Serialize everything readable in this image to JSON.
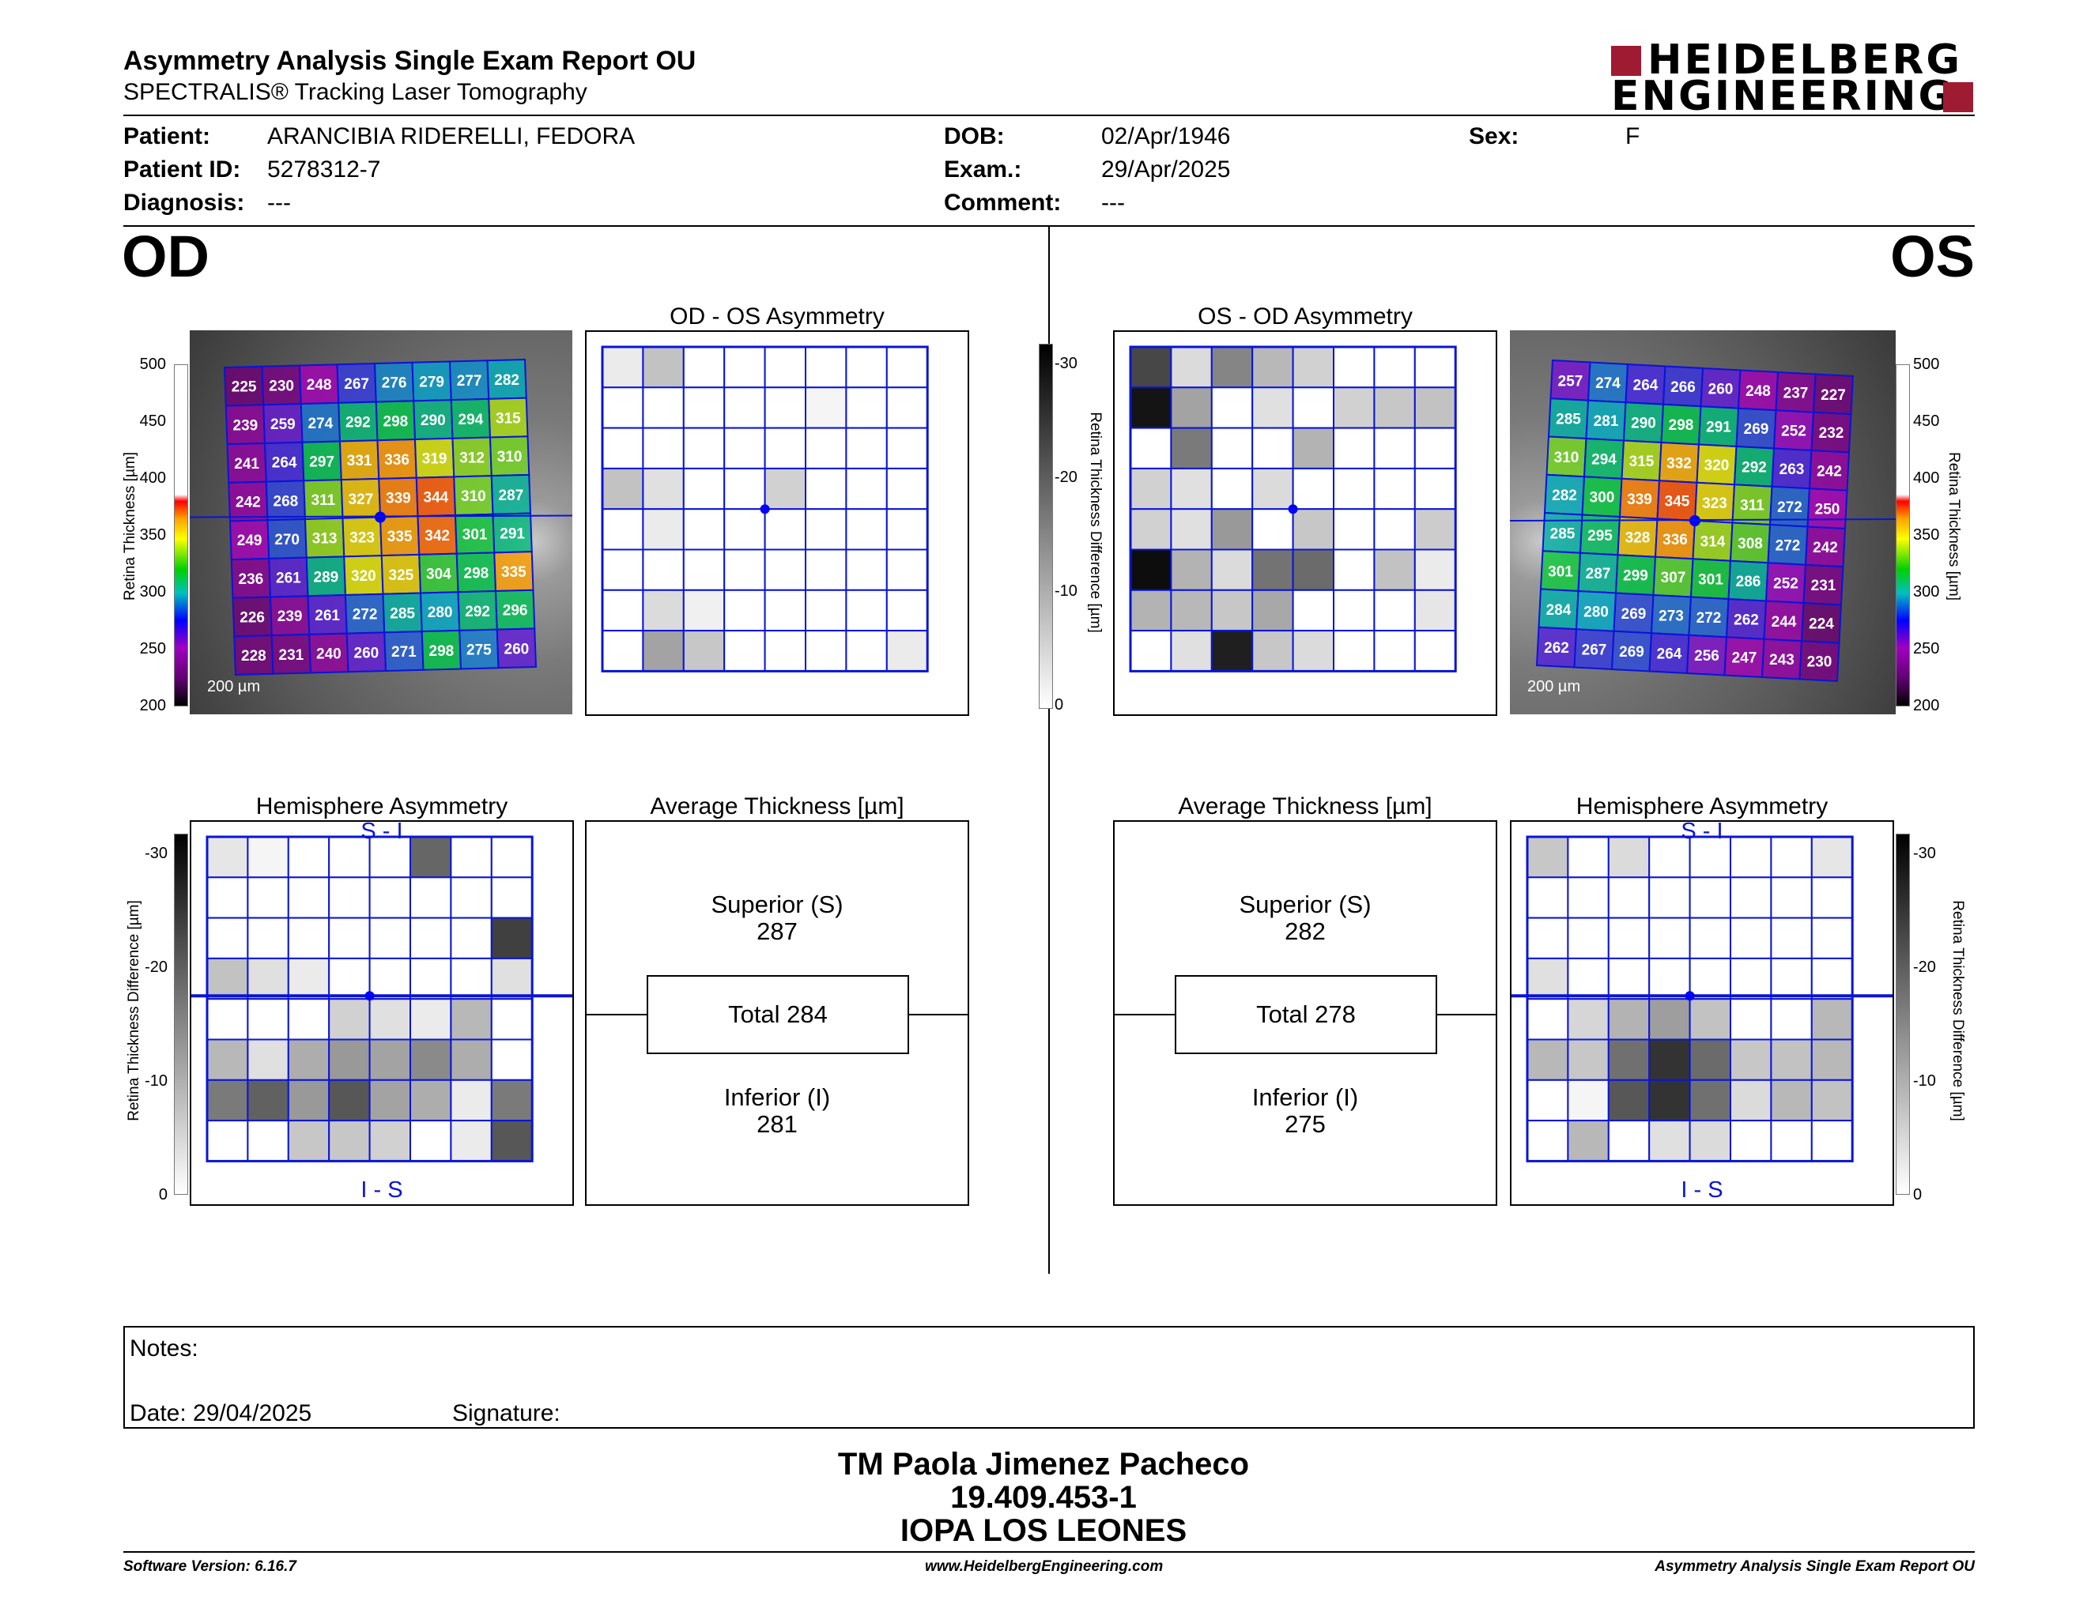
{
  "header": {
    "title": "Asymmetry Analysis Single Exam Report OU",
    "subtitle": "SPECTRALIS® Tracking Laser Tomography",
    "logo_line1": "HEIDELBERG",
    "logo_line2": "ENGINEERING",
    "logo_color": "#9e1b32"
  },
  "patient": {
    "patient_label": "Patient:",
    "patient": "ARANCIBIA RIDERELLI, FEDORA",
    "id_label": "Patient ID:",
    "id": "5278312-7",
    "diag_label": "Diagnosis:",
    "diagnosis": "---",
    "dob_label": "DOB:",
    "dob": "02/Apr/1946",
    "exam_label": "Exam.:",
    "exam": "29/Apr/2025",
    "comment_label": "Comment:",
    "comment": "---",
    "sex_label": "Sex:",
    "sex": "F"
  },
  "od": {
    "eye": "OD",
    "asym_title": "OD - OS Asymmetry",
    "hemi_title": "Hemisphere Asymmetry",
    "avg_title": "Average Thickness [µm]",
    "scale_bar": "200 µm",
    "hemi_top": "S - I",
    "hemi_bottom": "I - S",
    "superior_label": "Superior (S)",
    "superior": "287",
    "total_label": "Total 284",
    "inferior_label": "Inferior (I)",
    "inferior": "281",
    "grid": [
      [
        225,
        230,
        248,
        267,
        276,
        279,
        277,
        282
      ],
      [
        239,
        259,
        274,
        292,
        298,
        290,
        294,
        315
      ],
      [
        241,
        264,
        297,
        331,
        336,
        319,
        312,
        310
      ],
      [
        242,
        268,
        311,
        327,
        339,
        344,
        310,
        287
      ],
      [
        249,
        270,
        313,
        323,
        335,
        342,
        301,
        291
      ],
      [
        236,
        261,
        289,
        320,
        325,
        304,
        298,
        335
      ],
      [
        226,
        239,
        261,
        272,
        285,
        280,
        292,
        296
      ],
      [
        228,
        231,
        240,
        260,
        271,
        298,
        275,
        260
      ]
    ],
    "asym_shades": [
      [
        8,
        24,
        0,
        0,
        0,
        0,
        0,
        0
      ],
      [
        0,
        0,
        0,
        0,
        0,
        4,
        0,
        0
      ],
      [
        0,
        0,
        0,
        0,
        0,
        0,
        0,
        0
      ],
      [
        24,
        12,
        0,
        0,
        18,
        0,
        0,
        0
      ],
      [
        0,
        8,
        0,
        0,
        0,
        0,
        0,
        0
      ],
      [
        0,
        0,
        0,
        0,
        0,
        0,
        0,
        0
      ],
      [
        0,
        14,
        6,
        0,
        0,
        0,
        0,
        0
      ],
      [
        0,
        36,
        22,
        0,
        0,
        0,
        0,
        8
      ]
    ],
    "hemi_shades": [
      [
        10,
        4,
        0,
        0,
        0,
        60,
        0,
        0
      ],
      [
        0,
        0,
        0,
        0,
        0,
        0,
        0,
        0
      ],
      [
        0,
        0,
        0,
        0,
        0,
        0,
        0,
        75
      ],
      [
        24,
        12,
        8,
        0,
        0,
        0,
        0,
        12
      ],
      [
        0,
        0,
        0,
        18,
        12,
        8,
        28,
        0
      ],
      [
        28,
        12,
        32,
        40,
        36,
        46,
        32,
        0
      ],
      [
        52,
        62,
        40,
        66,
        36,
        32,
        8,
        52
      ],
      [
        0,
        0,
        22,
        22,
        18,
        0,
        8,
        66
      ]
    ]
  },
  "os": {
    "eye": "OS",
    "asym_title": "OS - OD Asymmetry",
    "hemi_title": "Hemisphere Asymmetry",
    "avg_title": "Average Thickness [µm]",
    "scale_bar": "200 µm",
    "hemi_top": "S - I",
    "hemi_bottom": "I - S",
    "superior_label": "Superior (S)",
    "superior": "282",
    "total_label": "Total 278",
    "inferior_label": "Inferior (I)",
    "inferior": "275",
    "grid": [
      [
        257,
        274,
        264,
        266,
        260,
        248,
        237,
        227
      ],
      [
        285,
        281,
        290,
        298,
        291,
        269,
        252,
        232
      ],
      [
        310,
        294,
        315,
        332,
        320,
        292,
        263,
        242
      ],
      [
        282,
        300,
        339,
        345,
        323,
        311,
        272,
        250
      ],
      [
        285,
        295,
        328,
        336,
        314,
        308,
        272,
        242
      ],
      [
        301,
        287,
        299,
        307,
        301,
        286,
        252,
        231
      ],
      [
        284,
        280,
        269,
        273,
        272,
        262,
        244,
        224
      ],
      [
        262,
        267,
        269,
        264,
        256,
        247,
        243,
        230
      ]
    ],
    "asym_shades": [
      [
        72,
        14,
        48,
        28,
        18,
        0,
        0,
        0
      ],
      [
        92,
        36,
        0,
        12,
        0,
        18,
        22,
        24
      ],
      [
        0,
        52,
        0,
        0,
        30,
        0,
        0,
        0
      ],
      [
        18,
        12,
        0,
        14,
        0,
        0,
        0,
        0
      ],
      [
        18,
        12,
        40,
        0,
        22,
        0,
        0,
        20
      ],
      [
        95,
        30,
        14,
        55,
        58,
        0,
        24,
        8
      ],
      [
        30,
        28,
        22,
        34,
        0,
        0,
        0,
        10
      ],
      [
        0,
        12,
        88,
        22,
        14,
        0,
        0,
        0
      ]
    ],
    "hemi_shades": [
      [
        22,
        0,
        14,
        0,
        0,
        0,
        0,
        10
      ],
      [
        0,
        0,
        0,
        0,
        0,
        0,
        0,
        0
      ],
      [
        0,
        0,
        0,
        0,
        0,
        0,
        0,
        0
      ],
      [
        12,
        0,
        0,
        0,
        0,
        0,
        0,
        0
      ],
      [
        0,
        16,
        30,
        38,
        24,
        0,
        0,
        28
      ],
      [
        28,
        22,
        56,
        80,
        58,
        22,
        24,
        28
      ],
      [
        0,
        4,
        66,
        80,
        56,
        14,
        28,
        24
      ],
      [
        0,
        28,
        0,
        12,
        14,
        0,
        0,
        0
      ]
    ]
  },
  "scales": {
    "thickness_label": "Retina Thickness [µm]",
    "thickness_ticks": [
      "500",
      "450",
      "400",
      "350",
      "300",
      "250",
      "200"
    ],
    "diff_label": "Retina Thickness Difference [µm]",
    "diff_ticks": [
      "-30",
      "-20",
      "-10",
      "0"
    ]
  },
  "notes": {
    "label": "Notes:",
    "date_label": "Date: 29/04/2025",
    "signature_label": "Signature:"
  },
  "signature": {
    "name": "TM Paola Jimenez Pacheco",
    "rut": "19.409.453-1",
    "org": "IOPA LOS LEONES"
  },
  "footer": {
    "software": "Software Version: 6.16.7",
    "website": "www.HeidelbergEngineering.com",
    "report": "Asymmetry Analysis Single Exam Report OU"
  },
  "colors": {
    "grid_blue": "#0a14d6",
    "center_dot": "#0000ff"
  }
}
